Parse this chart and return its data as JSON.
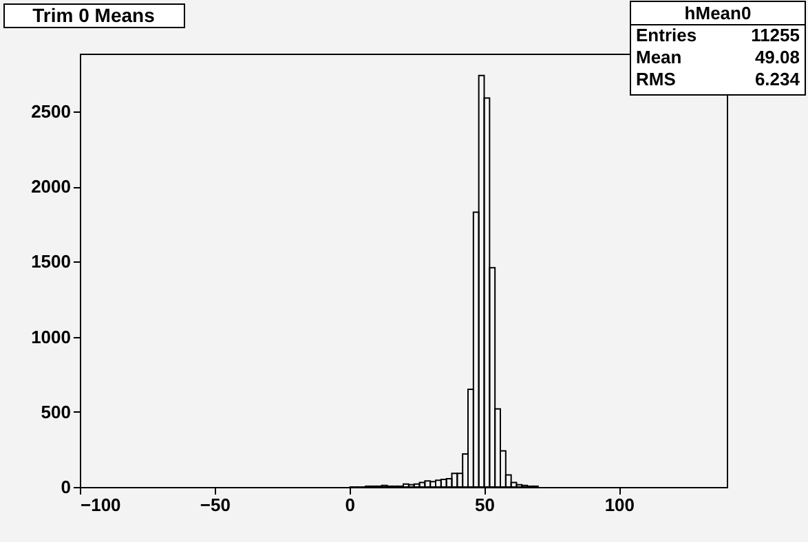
{
  "chart_data": {
    "type": "histogram",
    "title": "Trim 0 Means",
    "bins": [
      0,
      2,
      4,
      6,
      8,
      10,
      12,
      14,
      16,
      18,
      20,
      22,
      24,
      26,
      28,
      30,
      32,
      34,
      36,
      38,
      40,
      42,
      44,
      46,
      48,
      50,
      52,
      54,
      56,
      58,
      60,
      62,
      64,
      66,
      68,
      70
    ],
    "values": [
      0,
      0,
      0,
      5,
      5,
      5,
      10,
      5,
      5,
      5,
      20,
      15,
      20,
      30,
      40,
      35,
      45,
      50,
      55,
      90,
      90,
      220,
      650,
      1830,
      2740,
      2590,
      1460,
      520,
      240,
      80,
      30,
      15,
      10,
      5,
      5
    ],
    "color": "#000000",
    "xlim": [
      -100,
      140
    ],
    "ylim": [
      0,
      2885
    ],
    "xticks": [
      -100,
      -50,
      0,
      50,
      100
    ],
    "yticks": [
      0,
      500,
      1000,
      1500,
      2000,
      2500
    ],
    "grid": false,
    "annotations": [
      "hMean0",
      "Entries 11255",
      "Mean 49.08",
      "RMS 6.234"
    ]
  }
}
